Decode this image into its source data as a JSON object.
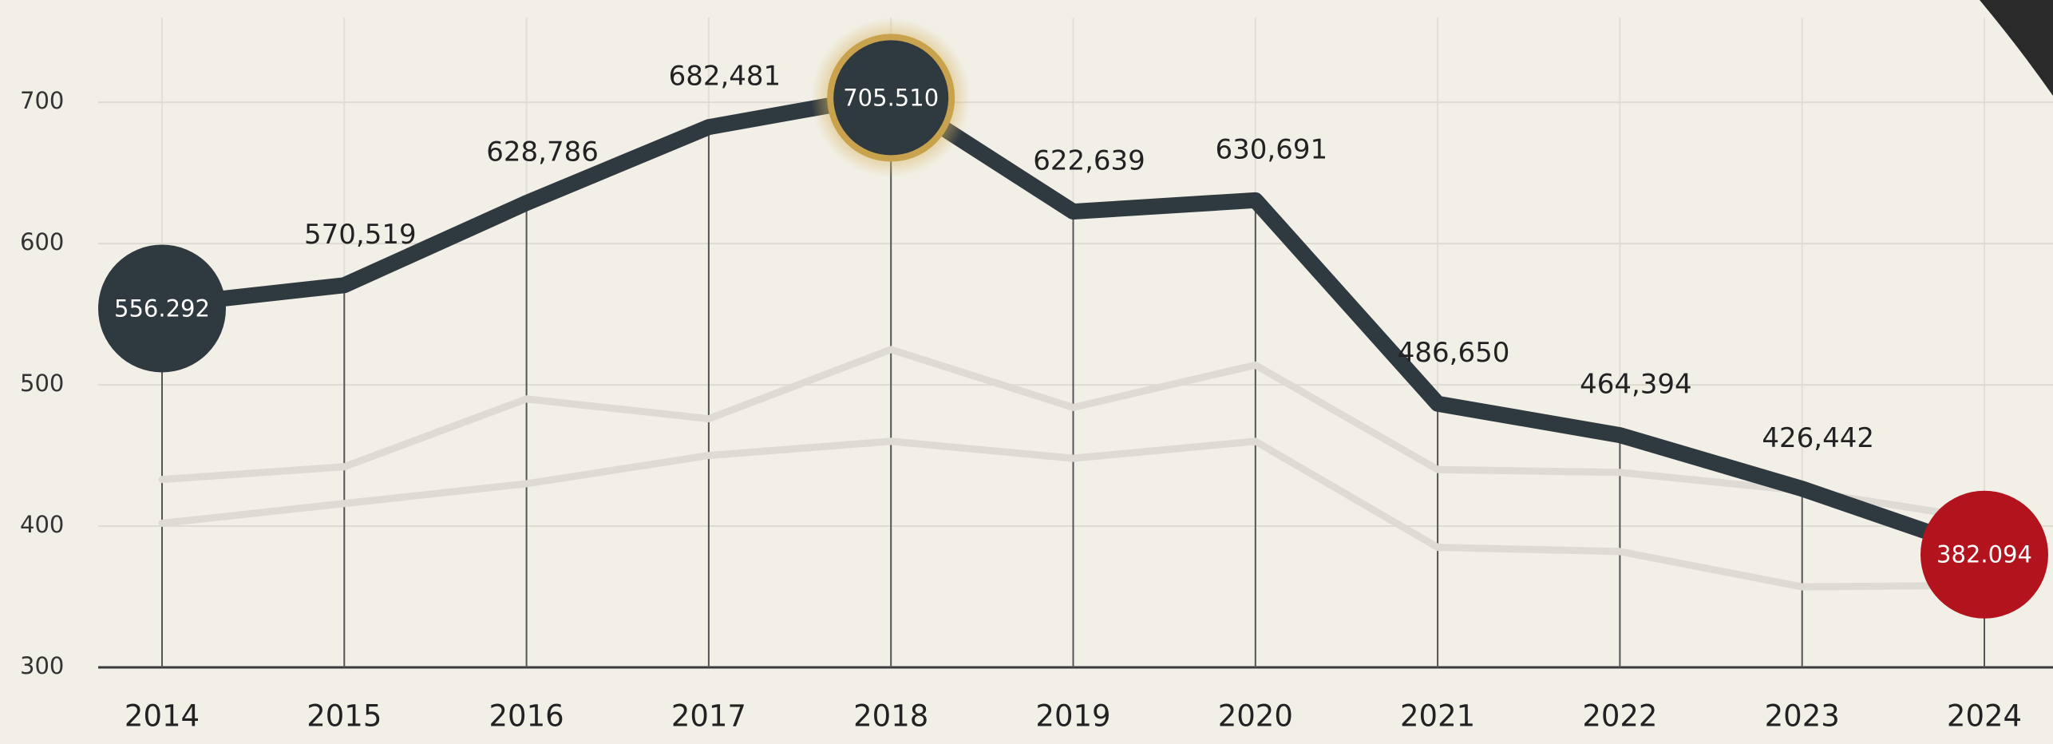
{
  "chart_data": {
    "type": "line",
    "categories": [
      "2014",
      "2015",
      "2016",
      "2017",
      "2018",
      "2019",
      "2020",
      "2021",
      "2022",
      "2023",
      "2024"
    ],
    "series": [
      {
        "color": "#dddbd3",
        "values": [
          433,
          442,
          490,
          476,
          525,
          484,
          514,
          440,
          438,
          425,
          405
        ]
      },
      {
        "color": "#dddbd3",
        "values": [
          402,
          416,
          430,
          450,
          460,
          448,
          460,
          385,
          382,
          357,
          358
        ]
      },
      {
        "color": "#2f3940",
        "values": [
          556.292,
          570.519,
          628.786,
          682.481,
          705.51,
          622.639,
          630.691,
          486.65,
          464.394,
          426.442,
          382.094
        ],
        "value_labels": [
          "556.292",
          "570,519",
          "628,786",
          "682,481",
          "705.510",
          "622,639",
          "630,691",
          "486,650",
          "464,394",
          "426,442",
          "382.094"
        ]
      }
    ],
    "callouts": [
      {
        "index": 0,
        "color": "#2f3940"
      },
      {
        "index": 4,
        "color": "#2f3940",
        "ring": "#c9a24e"
      },
      {
        "index": 10,
        "color": "#b3131d"
      }
    ],
    "ylim": [
      300,
      760
    ],
    "yticks": [
      300,
      400,
      500,
      600,
      700
    ],
    "grid": true
  }
}
